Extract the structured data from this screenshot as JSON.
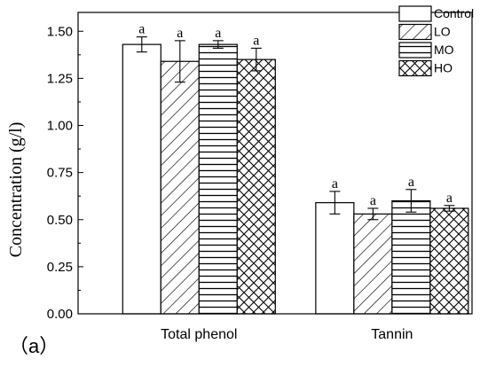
{
  "panel_label": "（a）",
  "chart_data": {
    "type": "bar",
    "categories": [
      "Total phenol",
      "Tannin"
    ],
    "series": [
      {
        "name": "Control",
        "pattern": "none",
        "values": [
          1.43,
          0.59
        ],
        "errors": [
          0.04,
          0.06
        ],
        "sig": [
          "a",
          "a"
        ]
      },
      {
        "name": "LO",
        "pattern": "diag-back",
        "values": [
          1.34,
          0.53
        ],
        "errors": [
          0.11,
          0.03
        ],
        "sig": [
          "a",
          "a"
        ]
      },
      {
        "name": "MO",
        "pattern": "horizontal",
        "values": [
          1.43,
          0.6
        ],
        "errors": [
          0.02,
          0.06
        ],
        "sig": [
          "a",
          "a"
        ]
      },
      {
        "name": "HO",
        "pattern": "cross-hatch",
        "values": [
          1.35,
          0.56
        ],
        "errors": [
          0.06,
          0.015
        ],
        "sig": [
          "a",
          "a"
        ]
      }
    ],
    "ylabel": "Concentration (g/l)",
    "xlabel": "",
    "ylim": [
      0,
      1.6
    ],
    "yticks": [
      "0.00",
      "0.25",
      "0.50",
      "0.75",
      "1.00",
      "1.25",
      "1.50"
    ],
    "legend_position": "top-right",
    "grid": false
  }
}
